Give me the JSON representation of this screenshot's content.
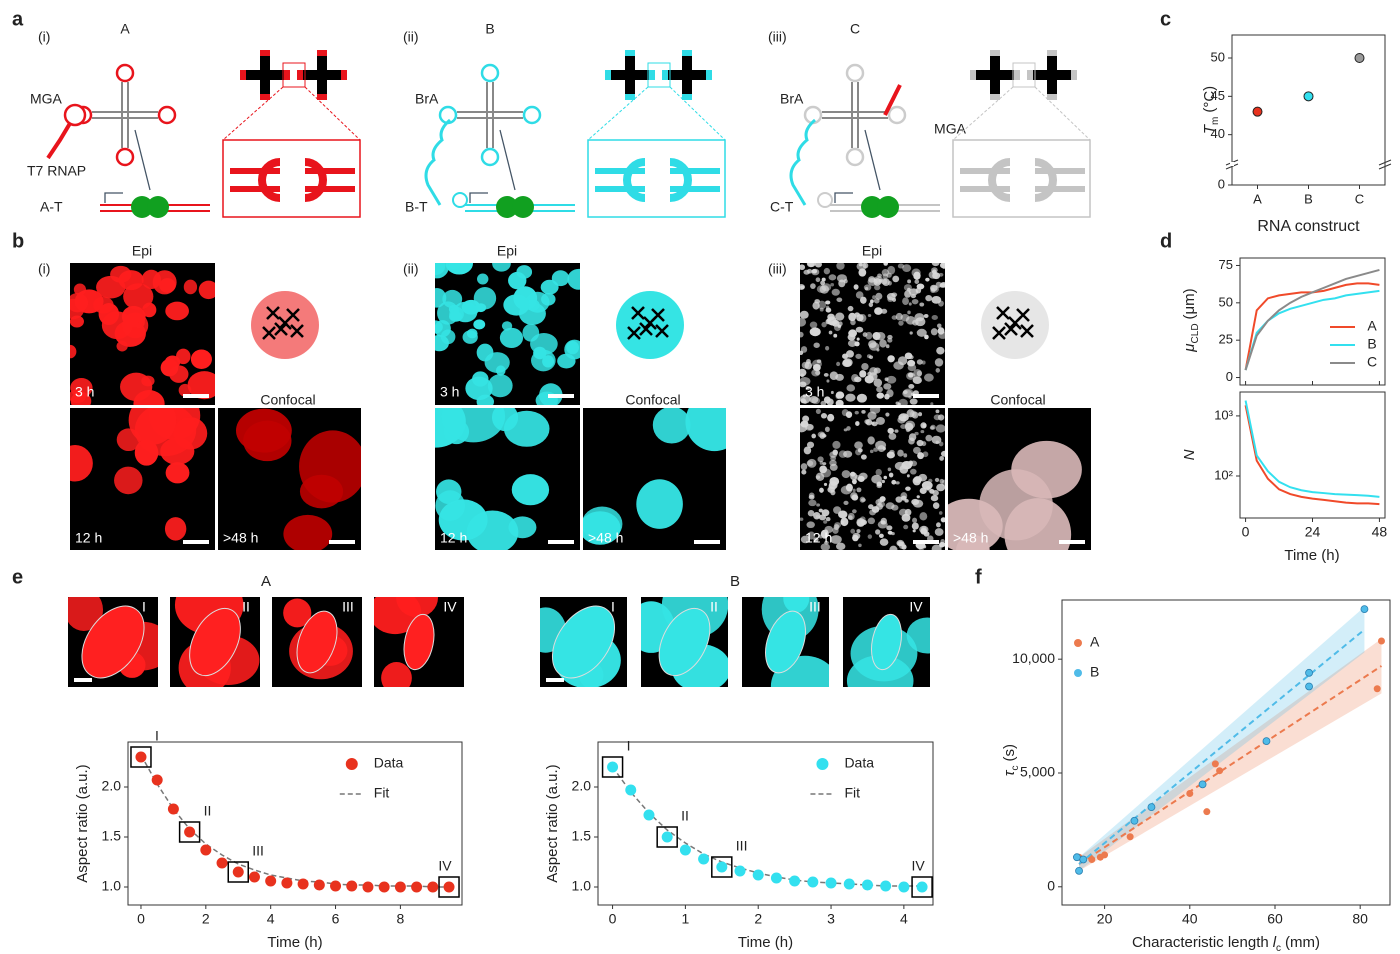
{
  "panel_labels": [
    "a",
    "b",
    "c",
    "d",
    "e",
    "f"
  ],
  "panel_a": [
    {
      "roman": "(i)",
      "construct": "A",
      "color": "#e8141c",
      "labels": [
        "MGA"
      ],
      "enzyme": "T7 RNAP",
      "template": "A-T"
    },
    {
      "roman": "(ii)",
      "construct": "B",
      "color": "#2fdce6",
      "labels": [
        "BrA"
      ],
      "template": "B-T"
    },
    {
      "roman": "(iii)",
      "construct": "C",
      "color": "#c4c4c4",
      "labels": [
        "BrA",
        "MGA"
      ],
      "template": "C-T"
    }
  ],
  "panel_b": [
    {
      "roman": "(i)",
      "epi": "Epi",
      "confocal": "Confocal",
      "times": [
        "3 h",
        "12 h",
        ">48 h"
      ]
    },
    {
      "roman": "(ii)",
      "epi": "Epi",
      "confocal": "Confocal",
      "times": [
        "3 h",
        "12 h",
        ">48 h"
      ]
    },
    {
      "roman": "(iii)",
      "epi": "Epi",
      "confocal": "Confocal",
      "times": [
        "3 h",
        "12 h",
        ">48 h"
      ]
    }
  ],
  "chart_data": [
    {
      "type": "scatter",
      "categories": [
        "A",
        "B",
        "C"
      ],
      "values": [
        43,
        45,
        50
      ],
      "colors": [
        "#e8321e",
        "#33e0ef",
        "#9a9a9a"
      ],
      "ylim": [
        0,
        53
      ],
      "axis_break": [
        3,
        38
      ],
      "yticks": [
        0,
        40,
        45,
        50
      ],
      "ylabel": "T",
      "ylabel_sub": "m",
      "ylabel_unit": "(°C)",
      "xlabel": "RNA construct"
    },
    {
      "type": "line",
      "x": [
        0,
        4,
        8,
        12,
        16,
        20,
        24,
        28,
        32,
        36,
        40,
        44,
        48
      ],
      "xlim": [
        -2,
        50
      ],
      "xticks": [
        0,
        24,
        48
      ],
      "ylim": [
        -5,
        80
      ],
      "yticks": [
        0,
        25,
        50,
        75
      ],
      "ylabel": "μ",
      "ylabel_sub": "CLD",
      "ylabel_unit": "(μm)",
      "legend": "lower right",
      "series": [
        {
          "name": "A",
          "color": "#f04a2a",
          "values": [
            5,
            45,
            53,
            55,
            56,
            57,
            57,
            58,
            60,
            62,
            63,
            63,
            62
          ]
        },
        {
          "name": "B",
          "color": "#33e0ef",
          "values": [
            5,
            30,
            38,
            43,
            46,
            48,
            50,
            52,
            53,
            55,
            56,
            57,
            58
          ]
        },
        {
          "name": "C",
          "color": "#8a8a8a",
          "values": [
            5,
            28,
            38,
            45,
            50,
            54,
            57,
            60,
            63,
            66,
            68,
            70,
            72
          ]
        }
      ]
    },
    {
      "type": "line",
      "log": true,
      "x": [
        0,
        4,
        8,
        12,
        16,
        20,
        24,
        28,
        32,
        36,
        40,
        44,
        48
      ],
      "xlim": [
        -2,
        50
      ],
      "xticks": [
        0,
        24,
        48
      ],
      "ylim": [
        20,
        2500
      ],
      "yticks": [
        {
          "value": 100,
          "label": "10²"
        },
        {
          "value": 1000,
          "label": "10³"
        }
      ],
      "ylabel": "N",
      "xlabel": "Time (h)",
      "series": [
        {
          "name": "A",
          "color": "#f04a2a",
          "values": [
            1500,
            180,
            90,
            60,
            50,
            45,
            42,
            40,
            38,
            36,
            35,
            35,
            34
          ]
        },
        {
          "name": "B",
          "color": "#33e0ef",
          "values": [
            1800,
            220,
            120,
            80,
            65,
            58,
            54,
            52,
            50,
            49,
            48,
            47,
            45
          ]
        }
      ]
    },
    {
      "type": "scatter",
      "title": "A",
      "image_labels": [
        "I",
        "II",
        "III",
        "IV"
      ],
      "x": [
        0,
        0.5,
        1,
        1.5,
        2,
        2.5,
        3,
        3.5,
        4,
        4.5,
        5,
        5.5,
        6,
        6.5,
        7,
        7.5,
        8,
        8.5,
        9,
        9.5
      ],
      "xlim": [
        -0.4,
        9.9
      ],
      "xticks": [
        0,
        2,
        4,
        6,
        8
      ],
      "ylim": [
        0.82,
        2.45
      ],
      "yticks": [
        {
          "value": 1,
          "label": "1.0"
        },
        1.5,
        {
          "value": 2,
          "label": "2.0"
        }
      ],
      "xlabel": "Time (h)",
      "ylabel": "Aspect ratio (a.u.)",
      "legend": "upper right",
      "series": [
        {
          "name": "Data",
          "color": "#e8321e",
          "values": [
            2.3,
            2.07,
            1.78,
            1.55,
            1.37,
            1.24,
            1.15,
            1.1,
            1.06,
            1.04,
            1.03,
            1.02,
            1.01,
            1.01,
            1.0,
            1.0,
            1.0,
            1.0,
            1.0,
            1.0
          ],
          "point_labels": [
            "I",
            null,
            null,
            "II",
            null,
            null,
            "III",
            null,
            null,
            null,
            null,
            null,
            null,
            null,
            null,
            null,
            null,
            null,
            null,
            "IV"
          ]
        },
        {
          "name": "Fit",
          "color": "#777777",
          "style": "dashed",
          "values": [
            2.32,
            2.03,
            1.78,
            1.58,
            1.43,
            1.32,
            1.23,
            1.17,
            1.12,
            1.09,
            1.06,
            1.05,
            1.03,
            1.02,
            1.02,
            1.01,
            1.01,
            1.01,
            1.0,
            1.0
          ]
        }
      ]
    },
    {
      "type": "scatter",
      "title": "B",
      "image_labels": [
        "I",
        "II",
        "III",
        "IV"
      ],
      "x": [
        0,
        0.25,
        0.5,
        0.75,
        1,
        1.25,
        1.5,
        1.75,
        2,
        2.25,
        2.5,
        2.75,
        3,
        3.25,
        3.5,
        3.75,
        4,
        4.25
      ],
      "xlim": [
        -0.2,
        4.4
      ],
      "xticks": [
        0,
        1,
        2,
        3,
        4
      ],
      "ylim": [
        0.82,
        2.45
      ],
      "yticks": [
        {
          "value": 1,
          "label": "1.0"
        },
        1.5,
        {
          "value": 2,
          "label": "2.0"
        }
      ],
      "xlabel": "Time (h)",
      "ylabel": "Aspect ratio (a.u.)",
      "legend": "upper right",
      "series": [
        {
          "name": "Data",
          "color": "#33e0ef",
          "values": [
            2.2,
            1.97,
            1.72,
            1.5,
            1.37,
            1.28,
            1.2,
            1.16,
            1.12,
            1.09,
            1.06,
            1.05,
            1.04,
            1.03,
            1.02,
            1.01,
            1.0,
            1.0
          ],
          "point_labels": [
            "I",
            null,
            null,
            "II",
            null,
            null,
            "III",
            null,
            null,
            null,
            null,
            null,
            null,
            null,
            null,
            null,
            null,
            "IV"
          ]
        },
        {
          "name": "Fit",
          "color": "#777777",
          "style": "dashed",
          "values": [
            2.2,
            1.95,
            1.74,
            1.57,
            1.44,
            1.33,
            1.25,
            1.19,
            1.14,
            1.1,
            1.07,
            1.05,
            1.04,
            1.03,
            1.02,
            1.01,
            1.01,
            1.01
          ]
        }
      ]
    },
    {
      "type": "scatter",
      "xlim": [
        10,
        87
      ],
      "xticks": [
        20,
        40,
        60,
        80
      ],
      "ylim": [
        -800,
        12600
      ],
      "yticks": [
        0,
        {
          "value": 5000,
          "label": "5,000"
        },
        {
          "value": 10000,
          "label": "10,000"
        }
      ],
      "xlabel": "Characteristic length",
      "xlabel_var": "l",
      "xlabel_sub": "c",
      "xlabel_unit": "(mm)",
      "ylabel": "τ",
      "ylabel_sub": "c",
      "ylabel_unit": "(s)",
      "legend": "upper left",
      "series": [
        {
          "name": "A",
          "color": "#ec7a4e",
          "x": [
            14,
            17,
            19,
            20,
            26,
            40,
            44,
            46,
            47,
            84,
            85
          ],
          "values": [
            1300,
            1200,
            1300,
            1400,
            2200,
            4100,
            3300,
            5400,
            5100,
            8700,
            10800
          ],
          "fit_x": [
            14,
            85
          ],
          "fit_y": [
            1000,
            9700
          ],
          "band_low": [
            700,
            8500
          ],
          "band_high": [
            1300,
            10900
          ]
        },
        {
          "name": "B",
          "color": "#4fbbe8",
          "x": [
            13.5,
            14,
            15,
            27,
            31,
            43,
            58,
            68,
            68,
            81
          ],
          "values": [
            1300,
            700,
            1200,
            2900,
            3500,
            4500,
            6400,
            9400,
            8800,
            12200
          ],
          "fit_x": [
            14,
            81
          ],
          "fit_y": [
            1000,
            11300
          ],
          "band_low": [
            700,
            10300
          ],
          "band_high": [
            1300,
            12300
          ]
        }
      ]
    }
  ]
}
